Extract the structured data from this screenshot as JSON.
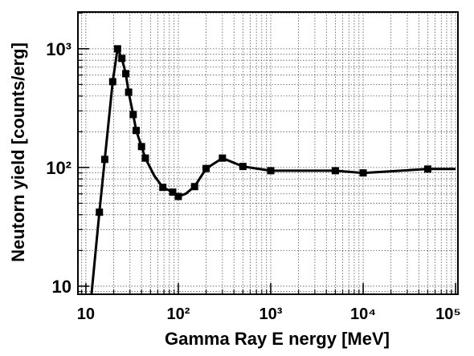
{
  "chart_data": {
    "type": "line",
    "xlabel": "Gamma  Ray E nergy  [MeV]",
    "ylabel": "Neutorn  yield  [counts/erg]",
    "x_log": true,
    "y_log": true,
    "grid": true,
    "color": "#000000",
    "xlim": [
      8.2,
      106000
    ],
    "ylim": [
      8.55,
      2040
    ],
    "xticks": [
      10,
      {
        "value": 100,
        "label": "10²"
      },
      {
        "value": 1000,
        "label": "10³"
      },
      {
        "value": 10000,
        "label": "10⁴"
      },
      {
        "value": 100000,
        "label": "10⁵"
      }
    ],
    "yticks": [
      10,
      {
        "value": 100,
        "label": "10²"
      },
      {
        "value": 1000,
        "label": "10³"
      }
    ],
    "series": [
      {
        "color": "#000000",
        "marker": "none",
        "x": [
          11.5,
          14,
          16,
          19.5,
          22,
          24.5,
          27,
          29,
          32.5,
          35,
          40,
          44,
          55,
          68,
          87,
          100,
          120,
          150,
          200,
          300,
          500,
          1000,
          5000,
          10000,
          50000,
          100000
        ],
        "values": [
          8.55,
          42,
          117,
          528,
          1000,
          830,
          617,
          431,
          279,
          205,
          150,
          120,
          85,
          68,
          62,
          57,
          60,
          69,
          98,
          120,
          102,
          94,
          94,
          90,
          97,
          97
        ]
      },
      {
        "color": "#000000",
        "marker": "square",
        "x": [
          14,
          16,
          19.5,
          22,
          24.5,
          27,
          29,
          32.5,
          35,
          40,
          44,
          68,
          87,
          100,
          150,
          200,
          300,
          500,
          1000,
          5000,
          10000,
          50000
        ],
        "values": [
          42,
          117,
          528,
          1000,
          830,
          617,
          431,
          279,
          205,
          150,
          120,
          68,
          62,
          57,
          69,
          98,
          120,
          102,
          94,
          94,
          90,
          97
        ]
      }
    ]
  }
}
